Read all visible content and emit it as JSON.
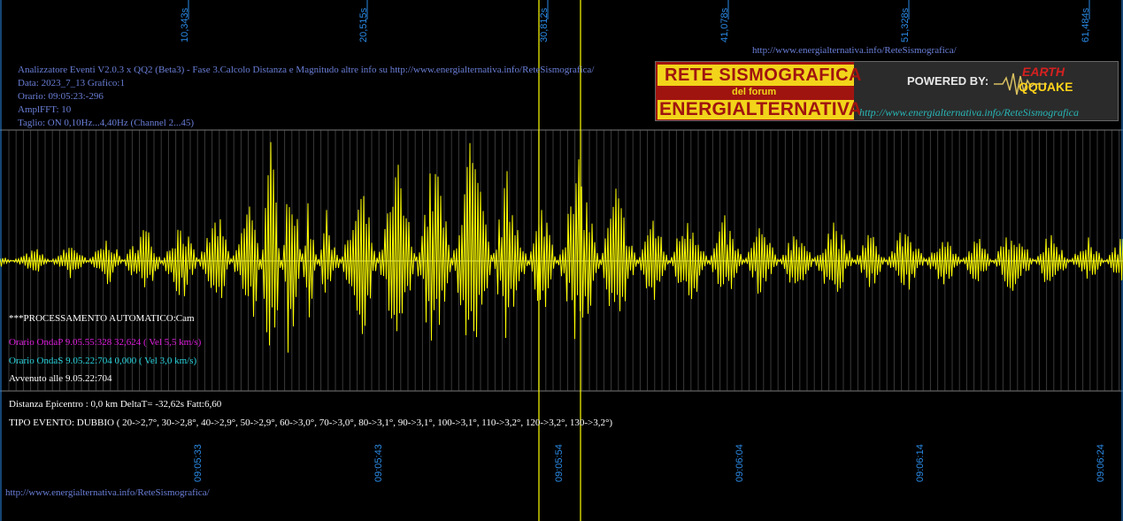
{
  "header": {
    "title": "Analizzatore Eventi V2.0.3 x QQ2 (Beta3) - Fase 3.Calcolo Distanza e Magnitudo altre info su http://www.energialternativa.info/ReteSismografica/",
    "data": "Data: 2023_7_13 Grafico:1",
    "orario": "Orario: 09:05:23:-296",
    "amplfft": "AmplFFT: 10",
    "taglio": "Taglio: ON 0,10Hz...4,40Hz      (Channel 2...45)"
  },
  "top_url": "http://www.energialternativa.info/ReteSismografica/",
  "bottom_url": "http://www.energialternativa.info/ReteSismografica/",
  "logo": {
    "line1": "RETE SISMOGRAFICA",
    "line2": "del forum",
    "line3": "ENERGIALTERNATIVA",
    "powered": "POWERED BY:",
    "brand_top": "EARTH",
    "brand_bottom": "QQUAKE",
    "url": "http://www.energialternativa.info/ReteSismografica"
  },
  "processing": {
    "auto": "***PROCESSAMENTO AUTOMATICO:Cam",
    "onda_p": "Orario OndaP 9.05.55:328  32,624 ( Vel 5,5 km/s)",
    "onda_s": "Orario OndaS 9.05.22:704  0,000 ( Vel 3,0 km/s)",
    "avvenuto": "Avvenuto alle 9.05.22:704",
    "distanza": "Distanza Epicentro : 0,0 km DeltaT= -32,62s  Fatt:6,60",
    "tipo": "TIPO EVENTO: DUBBIO ( 20->2,7°, 30->2,8°, 40->2,9°, 50->2,9°, 60->3,0°, 70->3,0°, 80->3,1°, 90->3,1°, 100->3,1°, 110->3,2°, 120->3,2°, 130->3,2°)"
  },
  "colors": {
    "background": "#000000",
    "trace": "#ffff00",
    "grid": "#666666",
    "axis_labels": "#2a8ae6"
  },
  "chart_data": {
    "type": "line",
    "xlabel": "",
    "ylabel": "",
    "top_tick_labels": [
      "10,343s",
      "20,515s",
      "30,812s",
      "41,078s",
      "51,328s",
      "61,484s"
    ],
    "bottom_tick_labels": [
      "09:05:33",
      "09:05:43",
      "09:05:54",
      "09:06:04",
      "09:06:14",
      "09:06:24"
    ],
    "grid": true,
    "series": [
      {
        "x": [
          0,
          2,
          4,
          6,
          8,
          10,
          12,
          14,
          15,
          16,
          17,
          18,
          20,
          22,
          24,
          26,
          28,
          30,
          32,
          34,
          36,
          38,
          40,
          42,
          44,
          46,
          48,
          50,
          52,
          54,
          56,
          58,
          60,
          62
        ],
        "y": [
          0.05,
          -0.1,
          0.15,
          -0.2,
          0.3,
          -0.35,
          0.4,
          -0.6,
          1.0,
          -0.9,
          0.5,
          -0.4,
          0.6,
          -0.8,
          0.9,
          -1.0,
          0.7,
          -0.5,
          0.8,
          -0.6,
          0.4,
          -0.45,
          0.35,
          -0.3,
          0.3,
          -0.35,
          0.25,
          -0.3,
          0.25,
          -0.2,
          0.3,
          -0.25,
          0.2,
          -0.2
        ]
      }
    ]
  }
}
